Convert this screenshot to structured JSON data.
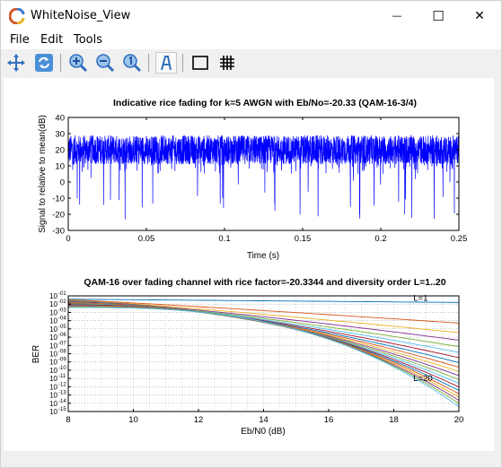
{
  "window": {
    "title": "WhiteNoise_View",
    "minimize_glyph": "—",
    "maximize_glyph": "☐",
    "close_glyph": "✕"
  },
  "menu": [
    "File",
    "Edit",
    "Tools"
  ],
  "toolbar": [
    "pan-icon",
    "rotate-icon",
    "zoom-in-icon",
    "zoom-out-icon",
    "zoom-reset-icon",
    "text-tool-icon",
    "box-icon",
    "grid-icon"
  ],
  "colors": {
    "signal_blue": "#0000ff",
    "accent_icon_blue": "#2f6fbf"
  },
  "chart_data": [
    {
      "type": "line",
      "title": "Indicative rice fading for k=5 AWGN with Eb/No=-20.33 (QAM-16-3/4)",
      "xlabel": "Time (s)",
      "ylabel": "Signal to relative to mean(dB)",
      "xlim": [
        0,
        0.25
      ],
      "ylim": [
        -30,
        40
      ],
      "xticks": [
        0,
        0.05,
        0.1,
        0.15,
        0.2,
        0.25
      ],
      "xtick_labels": [
        "0",
        "0.05",
        "0.1",
        "0.15",
        "0.2",
        "0.25"
      ],
      "yticks": [
        -30,
        -20,
        -10,
        0,
        10,
        20,
        30,
        40
      ],
      "ytick_labels": [
        "-30",
        "-20",
        "-10",
        "0",
        "10",
        "20",
        "30",
        "40"
      ],
      "grid": false,
      "series": [
        {
          "color": "#0000ff",
          "mean": 20,
          "upper_envelope": 29,
          "typical_min": 5,
          "deepest_fade": -25
        }
      ]
    },
    {
      "type": "line",
      "title": "QAM-16 over fading channel with rice factor=-20.3344 and diversity order L=1..20",
      "xlabel": "Eb/N0 (dB)",
      "ylabel": "BER",
      "xlim": [
        8,
        20
      ],
      "ylim": [
        -15,
        -1
      ],
      "log_scale_y": true,
      "xticks": [
        8,
        10,
        12,
        14,
        16,
        18,
        20
      ],
      "xtick_labels": [
        "8",
        "10",
        "12",
        "14",
        "16",
        "18",
        "20"
      ],
      "ytick_exponents": [
        "-01",
        "-02",
        "-03",
        "-04",
        "-05",
        "-06",
        "-07",
        "-08",
        "-09",
        "-10",
        "-11",
        "-12",
        "-13",
        "-14",
        "-15"
      ],
      "ytick_base": "10",
      "grid": true,
      "annotations": [
        {
          "text": "L=1",
          "x": 18.6,
          "y": -1.6
        },
        {
          "text": "L=20",
          "x": 18.6,
          "y": -11.3
        }
      ],
      "diversity_orders": [
        1,
        20
      ],
      "series_count": 20,
      "series_end_log10_ber": {
        "L1": -1.8,
        "L20": -14.4
      },
      "series_start_log10_ber": {
        "L1": -1.4,
        "L20": -2.4
      }
    }
  ]
}
